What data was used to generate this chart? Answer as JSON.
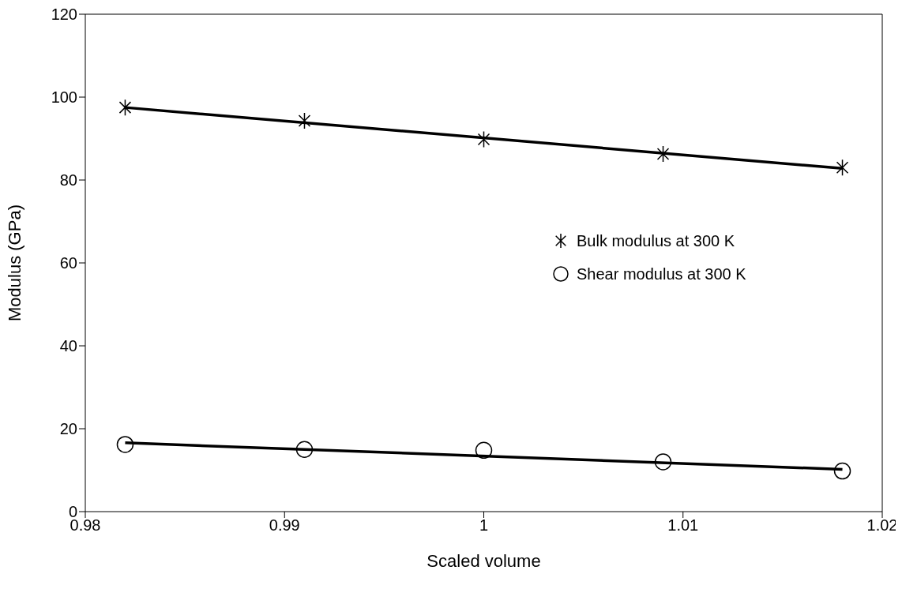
{
  "chart_data": {
    "type": "scatter",
    "xlabel": "Scaled volume",
    "ylabel": "Modulus (GPa)",
    "xlim": [
      0.98,
      1.02
    ],
    "xticks": [
      0.98,
      0.99,
      1,
      1.01,
      1.02
    ],
    "ylim": [
      0,
      120
    ],
    "yticks": [
      0,
      20,
      40,
      60,
      80,
      100,
      120
    ],
    "grid": false,
    "legend": "right",
    "line_style": "solid",
    "series": [
      {
        "name": "Bulk modulus at 300 K",
        "marker": "cross",
        "color": "#000000",
        "x": [
          0.982,
          0.991,
          1.0,
          1.009,
          1.018
        ],
        "values": [
          97.5,
          94.3,
          89.8,
          86.3,
          83.0
        ]
      },
      {
        "name": "Shear modulus at 300 K",
        "marker": "circle",
        "color": "#000000",
        "x": [
          0.982,
          0.991,
          1.0,
          1.009,
          1.018
        ],
        "values": [
          16.2,
          15.0,
          14.8,
          12.0,
          9.8
        ]
      },
      {
        "type": "line",
        "marker": "none",
        "color": "#000000",
        "x": [
          0.982,
          1.018
        ],
        "values": [
          97.5,
          82.8
        ]
      },
      {
        "type": "line",
        "marker": "none",
        "color": "#000000",
        "x": [
          0.982,
          1.018
        ],
        "values": [
          16.6,
          10.2
        ]
      }
    ]
  }
}
